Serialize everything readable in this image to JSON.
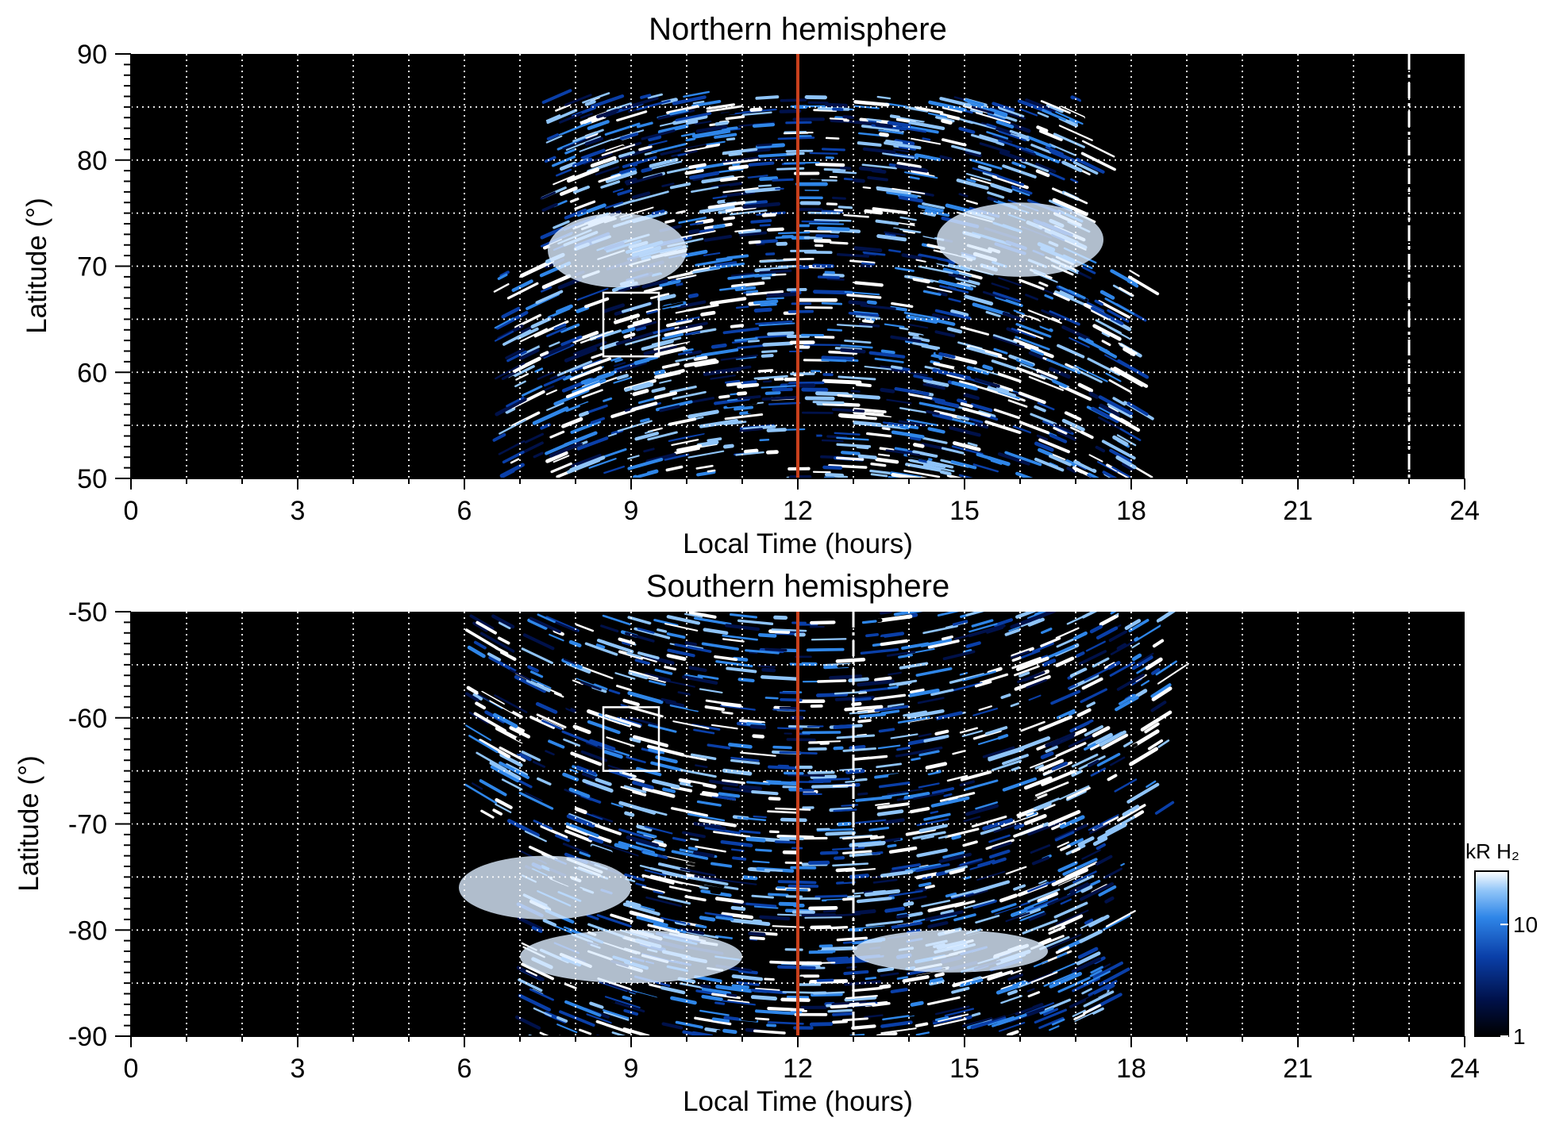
{
  "chart_data": [
    {
      "type": "heatmap",
      "title": "Northern hemisphere",
      "xlabel": "Local Time (hours)",
      "ylabel": "Latitude (°)",
      "xlim": [
        0,
        24
      ],
      "ylim": [
        50,
        90
      ],
      "x_ticks": [
        "0",
        "3",
        "6",
        "9",
        "12",
        "15",
        "18",
        "21",
        "24"
      ],
      "y_ticks": [
        "50",
        "60",
        "70",
        "80",
        "90"
      ],
      "grid": true,
      "grid_x_step": 1,
      "grid_y_step": 5,
      "emission_extent": {
        "local_time": [
          6.5,
          18.0
        ],
        "latitude": [
          50,
          86
        ]
      },
      "bright_arcs": [
        {
          "local_time": [
            7.5,
            10.0
          ],
          "latitude": [
            68,
            75
          ]
        },
        {
          "local_time": [
            14.5,
            17.5
          ],
          "latitude": [
            69,
            76
          ]
        }
      ],
      "reference_lines": [
        {
          "local_time": 12,
          "color": "#c8401c",
          "style": "solid"
        },
        {
          "local_time": 23,
          "color": "#ffffff",
          "style": "dashed"
        }
      ],
      "box": {
        "local_time": [
          8.5,
          9.5
        ],
        "latitude": [
          61.5,
          67.5
        ]
      }
    },
    {
      "type": "heatmap",
      "title": "Southern hemisphere",
      "xlabel": "Local Time (hours)",
      "ylabel": "Latitude (°)",
      "xlim": [
        0,
        24
      ],
      "ylim": [
        -90,
        -50
      ],
      "x_ticks": [
        "0",
        "3",
        "6",
        "9",
        "12",
        "15",
        "18",
        "21",
        "24"
      ],
      "y_ticks": [
        "-50",
        "-60",
        "-70",
        "-80",
        "-90"
      ],
      "grid": true,
      "grid_x_step": 1,
      "grid_y_step": 5,
      "emission_extent": {
        "local_time": [
          6.0,
          18.5
        ],
        "latitude": [
          -90,
          -50
        ]
      },
      "bright_arcs": [
        {
          "local_time": [
            5.9,
            9.0
          ],
          "latitude": [
            -79,
            -73
          ]
        },
        {
          "local_time": [
            7.0,
            11.0
          ],
          "latitude": [
            -85,
            -80
          ]
        },
        {
          "local_time": [
            13.0,
            16.5
          ],
          "latitude": [
            -84,
            -80
          ]
        }
      ],
      "reference_lines": [
        {
          "local_time": 12,
          "color": "#c8401c",
          "style": "solid"
        },
        {
          "local_time": 13,
          "color": "#ffffff",
          "style": "dashed"
        }
      ],
      "box": {
        "local_time": [
          8.5,
          9.5
        ],
        "latitude": [
          -65,
          -59
        ]
      },
      "colorbar": {
        "label": "kR H₂",
        "scale": "log",
        "range": [
          1,
          30
        ],
        "ticks": [
          "1",
          "10"
        ],
        "colors": [
          "#000000",
          "#00114a",
          "#0a3fa8",
          "#2f86e8",
          "#8fc4f8",
          "#ffffff"
        ]
      }
    }
  ]
}
